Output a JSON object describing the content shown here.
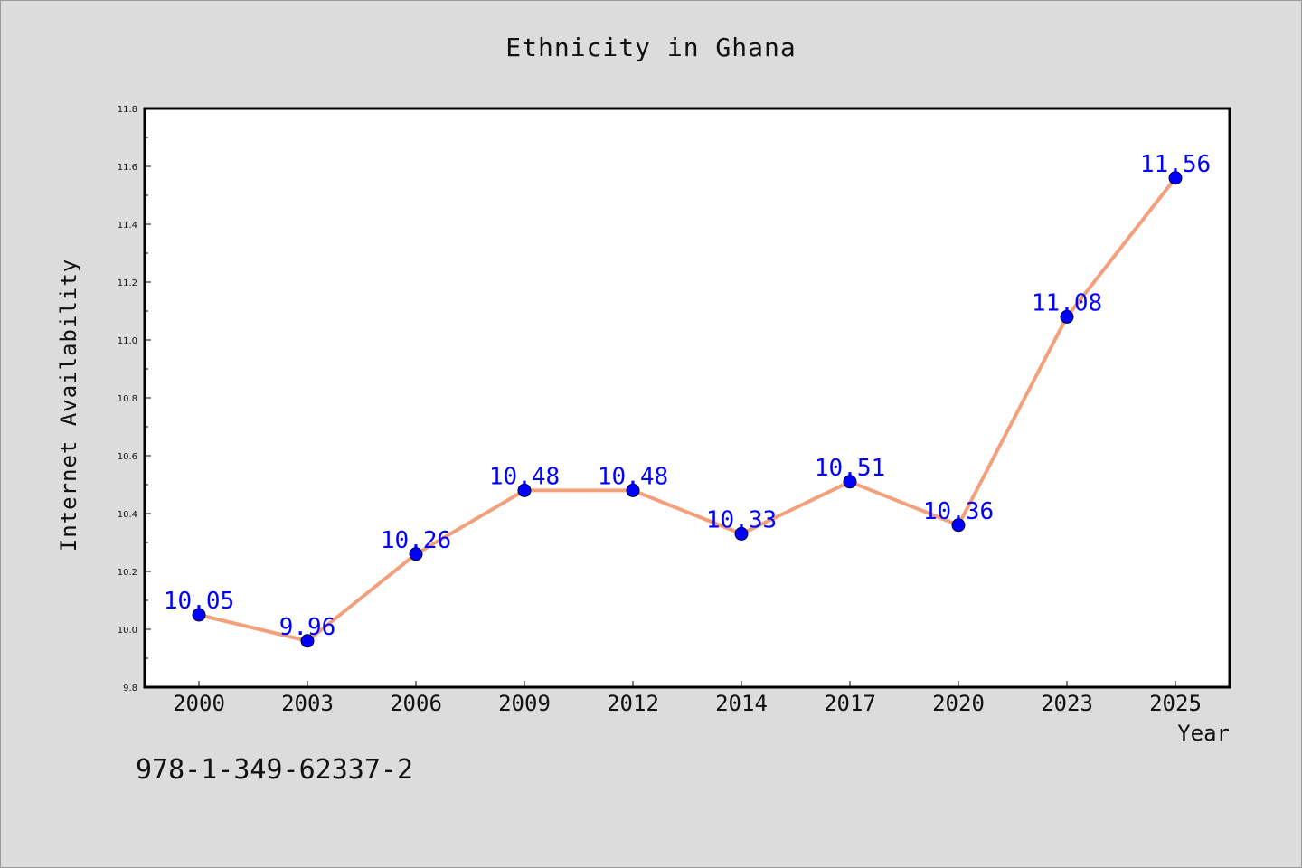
{
  "chart_data": {
    "type": "line",
    "title": "Ethnicity in Ghana",
    "xlabel": "Year",
    "ylabel": "Internet Availability",
    "categories": [
      "2000",
      "2003",
      "2006",
      "2009",
      "2012",
      "2014",
      "2017",
      "2020",
      "2023",
      "2025"
    ],
    "values": [
      10.05,
      9.96,
      10.26,
      10.48,
      10.48,
      10.33,
      10.51,
      10.36,
      11.08,
      11.56
    ],
    "data_labels": [
      "10.05",
      "9.96",
      "10.26",
      "10.48",
      "10.48",
      "10.33",
      "10.51",
      "10.36",
      "11.08",
      "11.56"
    ],
    "ylim": [
      9.8,
      11.8
    ],
    "yticks": [
      "9.8",
      "10.0",
      "10.2",
      "10.4",
      "10.6",
      "10.8",
      "11.0",
      "11.2",
      "11.4",
      "11.6",
      "11.8"
    ],
    "grid": false,
    "line_color": "#f4a07c",
    "marker_color": "#0000ff",
    "label_color": "#0000ff"
  },
  "footer": {
    "isbn": "978-1-349-62337-2"
  }
}
